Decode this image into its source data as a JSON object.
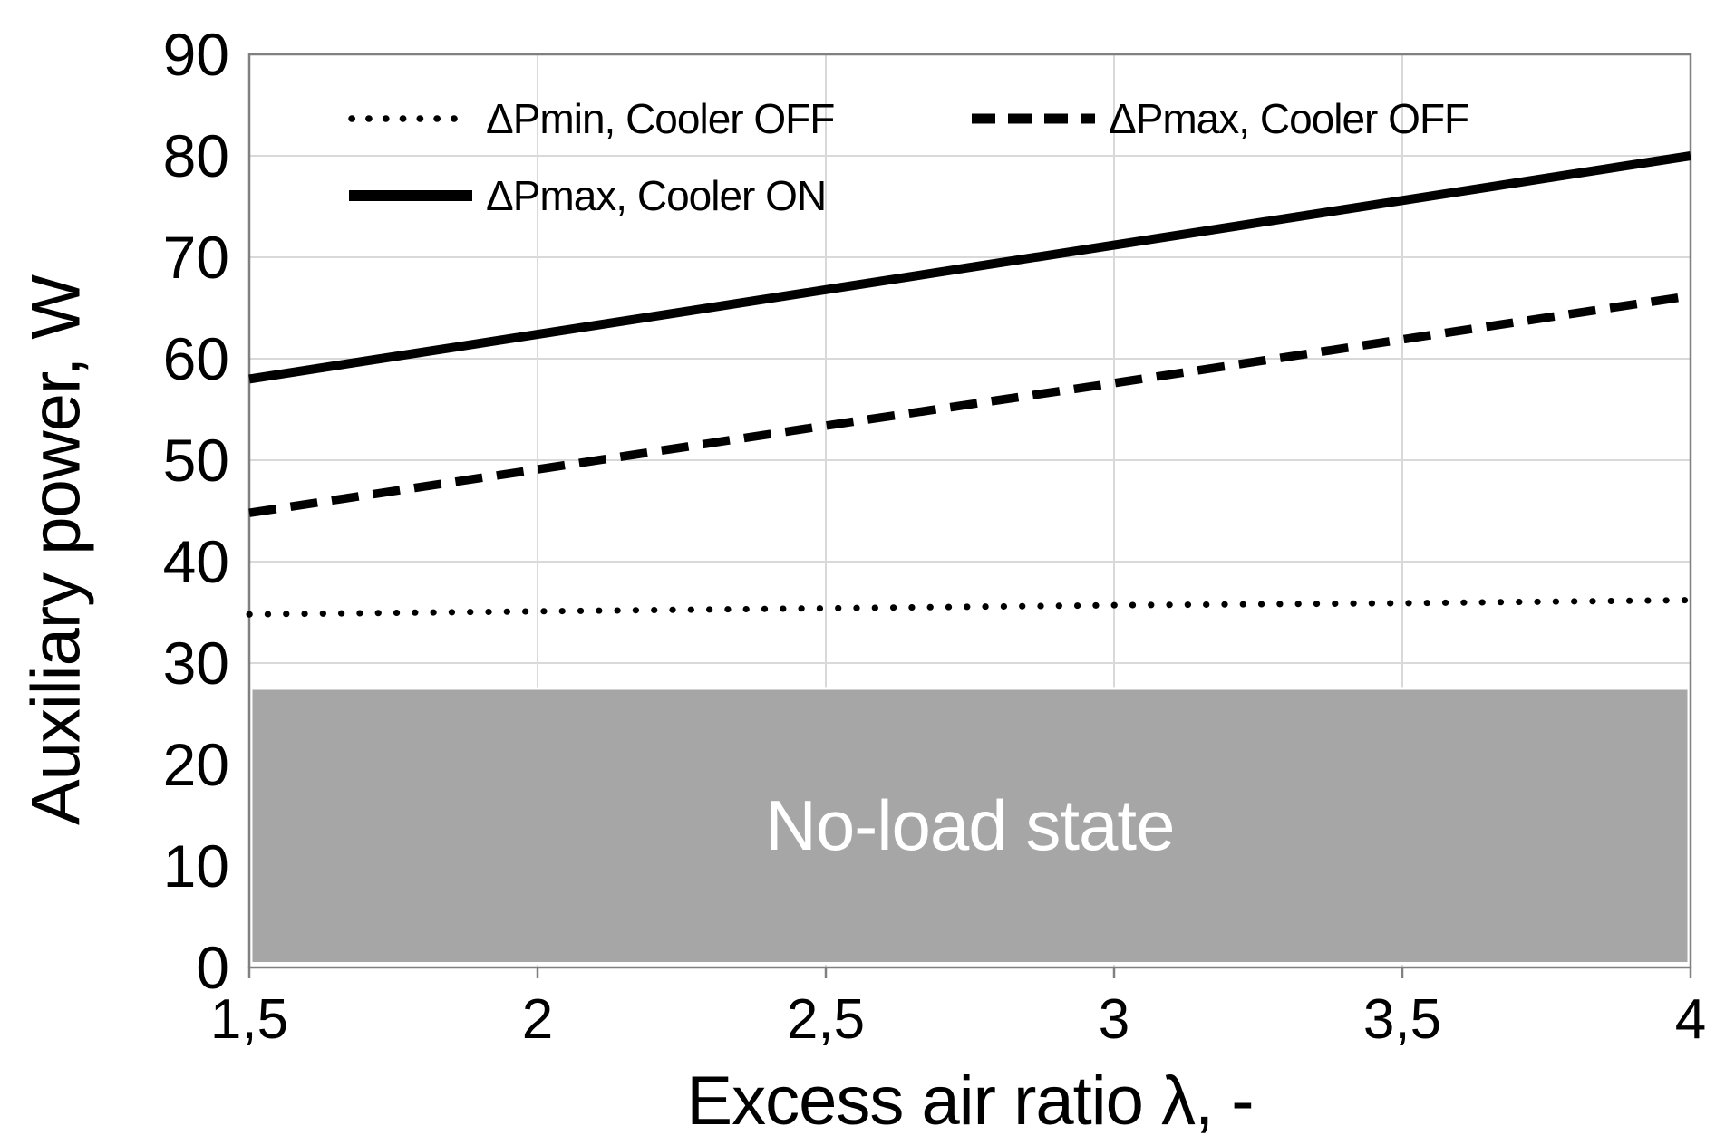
{
  "chart_data": {
    "type": "line",
    "title": "",
    "xlabel": "Excess air ratio λ, -",
    "ylabel": "Auxiliary power, W",
    "xlim": [
      1.5,
      4
    ],
    "ylim": [
      0,
      90
    ],
    "grid": true,
    "legend_position": "top-inside",
    "x": [
      1.5,
      2,
      2.5,
      3,
      3.5,
      4
    ],
    "x_tick_labels": [
      "1,5",
      "2",
      "2,5",
      "3",
      "3,5",
      "4"
    ],
    "y_ticks": [
      0,
      10,
      20,
      30,
      40,
      50,
      60,
      70,
      80,
      90
    ],
    "y_tick_labels": [
      "0",
      "10",
      "20",
      "30",
      "40",
      "50",
      "60",
      "70",
      "80",
      "90"
    ],
    "series": [
      {
        "name": "ΔPmin, Cooler OFF",
        "style": "dotted",
        "color": "#000000",
        "values": [
          34.8,
          35.1,
          35.4,
          35.7,
          35.9,
          36.2
        ]
      },
      {
        "name": "ΔPmax, Cooler OFF",
        "style": "dashed",
        "color": "#000000",
        "values": [
          44.8,
          49.1,
          53.4,
          57.6,
          61.9,
          66.2
        ]
      },
      {
        "name": "ΔPmax, Cooler ON",
        "style": "solid",
        "color": "#000000",
        "values": [
          58.0,
          62.4,
          66.8,
          71.2,
          75.6,
          80.0
        ]
      }
    ],
    "annotations": [
      {
        "type": "region",
        "label": "No-load state",
        "x_from": 1.5,
        "x_to": 4,
        "y_from": 0.4,
        "y_to": 27.5,
        "fill": "#a6a6a6",
        "text_color": "#ffffff"
      }
    ],
    "colors": {
      "background": "#ffffff",
      "gridline": "#d9d9d9",
      "plot_border": "#808080",
      "line": "#000000",
      "text": "#000000"
    }
  }
}
